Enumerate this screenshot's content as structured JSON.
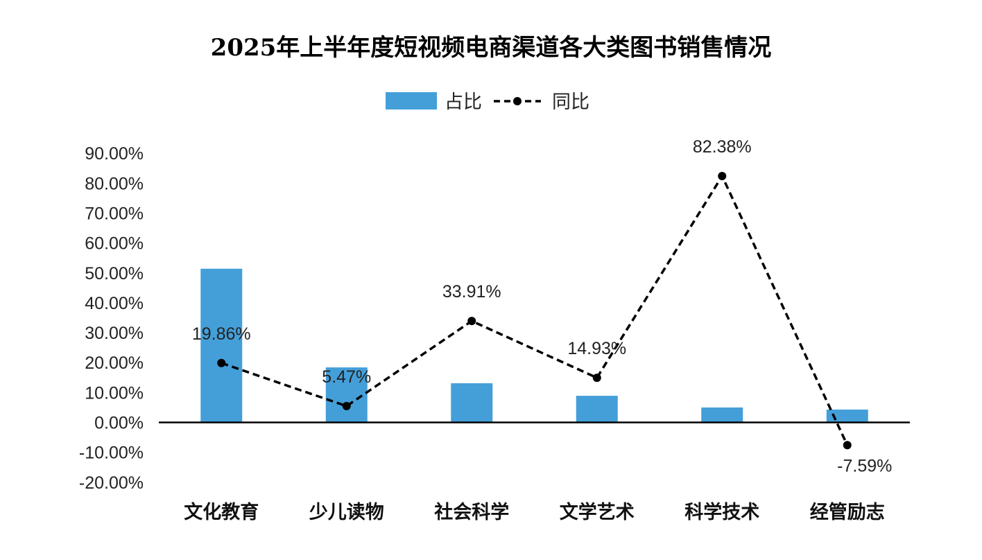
{
  "chart_data": {
    "type": "bar",
    "title": "2025年上半年度短视频电商渠道各大类图书销售情况",
    "categories": [
      "文化教育",
      "少儿读物",
      "社会科学",
      "文学艺术",
      "科学技术",
      "经管励志"
    ],
    "series": [
      {
        "name": "占比",
        "type": "bar",
        "color": "#449FD9",
        "values": [
          51.4,
          18.4,
          13.1,
          8.9,
          5.0,
          4.3
        ]
      },
      {
        "name": "同比",
        "type": "line",
        "style": "dashed",
        "color": "#000000",
        "values": [
          19.86,
          5.47,
          33.91,
          14.93,
          82.38,
          -7.59
        ],
        "labels": [
          "19.86%",
          "5.47%",
          "33.91%",
          "14.93%",
          "82.38%",
          "-7.59%"
        ]
      }
    ],
    "ylim": [
      -20,
      90
    ],
    "yticks": [
      "90.00%",
      "80.00%",
      "70.00%",
      "60.00%",
      "50.00%",
      "40.00%",
      "30.00%",
      "20.00%",
      "10.00%",
      "0.00%",
      "-10.00%",
      "-20.00%"
    ],
    "ytick_values": [
      90,
      80,
      70,
      60,
      50,
      40,
      30,
      20,
      10,
      0,
      -10,
      -20
    ],
    "xlabel": "",
    "ylabel": "",
    "legend": "top-center",
    "grid": false
  }
}
